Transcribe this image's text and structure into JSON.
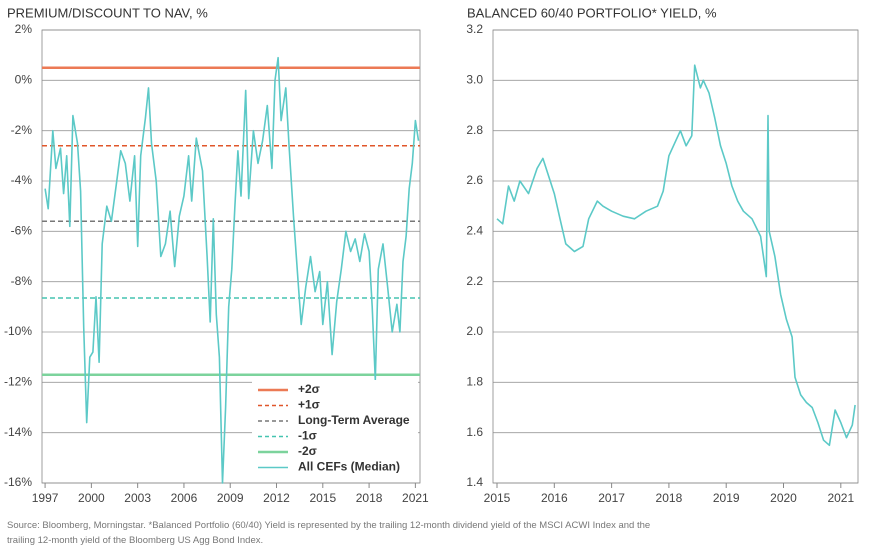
{
  "chart_data": [
    {
      "type": "line",
      "title": "PREMIUM/DISCOUNT TO NAV, %",
      "xlim": [
        1996.8,
        2021.3
      ],
      "xticks": [
        1997,
        2000,
        2003,
        2006,
        2009,
        2012,
        2015,
        2018,
        2021
      ],
      "ylim": [
        -16,
        2
      ],
      "yticks": [
        {
          "value": 2,
          "label": "2%"
        },
        {
          "value": 0,
          "label": "0%"
        },
        {
          "value": -2,
          "label": "-2%"
        },
        {
          "value": -4,
          "label": "-4%"
        },
        {
          "value": -6,
          "label": "-6%"
        },
        {
          "value": -8,
          "label": "-8%"
        },
        {
          "value": -10,
          "label": "-10%"
        },
        {
          "value": -12,
          "label": "-12%"
        },
        {
          "value": -14,
          "label": "-14%"
        },
        {
          "value": -16,
          "label": "-16%"
        }
      ],
      "grid": true,
      "legend": "lower right",
      "hlines": [
        {
          "name": "+2σ",
          "value": 0.5,
          "color": "#ec7a55",
          "style": "solid"
        },
        {
          "name": "+1σ",
          "value": -2.6,
          "color": "#e0562a",
          "style": "dashed"
        },
        {
          "name": "Long-Term Average",
          "value": -5.6,
          "color": "#777777",
          "style": "dashed"
        },
        {
          "name": "-1σ",
          "value": -8.65,
          "color": "#45c4b0",
          "style": "dashed"
        },
        {
          "name": "-2σ",
          "value": -11.7,
          "color": "#7cd39c",
          "style": "solid"
        }
      ],
      "x": [
        1997.0,
        1997.2,
        1997.5,
        1997.7,
        1998.0,
        1998.2,
        1998.4,
        1998.6,
        1998.8,
        1999.1,
        1999.3,
        1999.5,
        1999.7,
        1999.9,
        2000.1,
        2000.3,
        2000.5,
        2000.7,
        2001.0,
        2001.3,
        2001.6,
        2001.9,
        2002.2,
        2002.5,
        2002.8,
        2003.0,
        2003.2,
        2003.5,
        2003.7,
        2003.9,
        2004.2,
        2004.5,
        2004.8,
        2005.1,
        2005.4,
        2005.7,
        2006.0,
        2006.3,
        2006.5,
        2006.8,
        2007.2,
        2007.5,
        2007.7,
        2007.9,
        2008.1,
        2008.3,
        2008.5,
        2008.7,
        2008.9,
        2009.1,
        2009.3,
        2009.5,
        2009.7,
        2010.0,
        2010.2,
        2010.5,
        2010.8,
        2011.1,
        2011.4,
        2011.7,
        2011.9,
        2012.1,
        2012.3,
        2012.6,
        2012.8,
        2013.1,
        2013.4,
        2013.6,
        2013.9,
        2014.2,
        2014.5,
        2014.8,
        2015.0,
        2015.3,
        2015.6,
        2015.9,
        2016.2,
        2016.5,
        2016.8,
        2017.1,
        2017.4,
        2017.7,
        2018.0,
        2018.2,
        2018.4,
        2018.6,
        2018.9,
        2019.2,
        2019.5,
        2019.8,
        2020.0,
        2020.2,
        2020.4,
        2020.6,
        2020.8,
        2021.0,
        2021.2
      ],
      "series": [
        {
          "name": "All CEFs (Median)",
          "color": "#5cc9c7",
          "values": [
            -4.3,
            -5.1,
            -2.0,
            -3.5,
            -2.7,
            -4.5,
            -3.0,
            -5.8,
            -1.4,
            -2.5,
            -4.4,
            -9.8,
            -13.6,
            -11.0,
            -10.8,
            -8.6,
            -11.2,
            -6.5,
            -5.0,
            -5.6,
            -4.2,
            -2.8,
            -3.3,
            -4.8,
            -3.0,
            -6.6,
            -3.0,
            -1.5,
            -0.3,
            -2.5,
            -4.0,
            -7.0,
            -6.5,
            -5.2,
            -7.4,
            -5.4,
            -4.6,
            -3.0,
            -4.8,
            -2.3,
            -3.6,
            -7.0,
            -9.6,
            -5.5,
            -9.3,
            -11.0,
            -16.0,
            -13.0,
            -9.0,
            -7.5,
            -5.0,
            -2.8,
            -4.6,
            -0.4,
            -4.7,
            -2.0,
            -3.3,
            -2.4,
            -1.0,
            -3.5,
            0.0,
            0.9,
            -1.6,
            -0.3,
            -2.5,
            -5.4,
            -8.0,
            -9.7,
            -8.2,
            -7.0,
            -8.4,
            -7.6,
            -9.7,
            -8.0,
            -10.9,
            -8.8,
            -7.5,
            -6.0,
            -6.8,
            -6.3,
            -7.2,
            -6.1,
            -6.8,
            -9.0,
            -11.9,
            -7.5,
            -6.5,
            -8.2,
            -10.0,
            -8.9,
            -10.0,
            -7.2,
            -6.2,
            -4.3,
            -3.3,
            -1.6,
            -2.4
          ]
        }
      ]
    },
    {
      "type": "line",
      "title": "BALANCED 60/40 PORTFOLIO* YIELD, %",
      "xlim": [
        2014.93,
        2021.3
      ],
      "xticks": [
        2015,
        2016,
        2017,
        2018,
        2019,
        2020,
        2021
      ],
      "ylim": [
        1.4,
        3.2
      ],
      "yticks": [
        1.4,
        1.6,
        1.8,
        {
          "value": 2,
          "label": "2.0"
        },
        2.2,
        2.4,
        2.6,
        2.8,
        {
          "value": 3,
          "label": "3.0"
        },
        3.2
      ],
      "grid": true,
      "x": [
        2015.0,
        2015.1,
        2015.2,
        2015.3,
        2015.4,
        2015.55,
        2015.7,
        2015.8,
        2015.9,
        2016.0,
        2016.1,
        2016.2,
        2016.35,
        2016.5,
        2016.6,
        2016.75,
        2016.85,
        2017.0,
        2017.2,
        2017.4,
        2017.6,
        2017.8,
        2017.9,
        2018.0,
        2018.1,
        2018.2,
        2018.3,
        2018.4,
        2018.45,
        2018.55,
        2018.6,
        2018.7,
        2018.8,
        2018.9,
        2019.0,
        2019.1,
        2019.2,
        2019.3,
        2019.45,
        2019.6,
        2019.7,
        2019.73,
        2019.75,
        2019.85,
        2019.95,
        2020.05,
        2020.15,
        2020.2,
        2020.3,
        2020.4,
        2020.5,
        2020.6,
        2020.7,
        2020.8,
        2020.9,
        2021.0,
        2021.1,
        2021.2,
        2021.25
      ],
      "series": [
        {
          "name": "Balanced 60/40 Portfolio Yield",
          "color": "#5cc9c7",
          "values": [
            2.45,
            2.43,
            2.58,
            2.52,
            2.6,
            2.55,
            2.65,
            2.69,
            2.62,
            2.55,
            2.45,
            2.35,
            2.32,
            2.34,
            2.45,
            2.52,
            2.5,
            2.48,
            2.46,
            2.45,
            2.48,
            2.5,
            2.56,
            2.7,
            2.75,
            2.8,
            2.74,
            2.78,
            3.06,
            2.97,
            3.0,
            2.95,
            2.85,
            2.74,
            2.67,
            2.58,
            2.52,
            2.48,
            2.45,
            2.38,
            2.22,
            2.86,
            2.4,
            2.3,
            2.15,
            2.05,
            1.98,
            1.82,
            1.75,
            1.72,
            1.7,
            1.64,
            1.57,
            1.55,
            1.69,
            1.64,
            1.58,
            1.63,
            1.71
          ]
        }
      ]
    }
  ],
  "source": "Source: Bloomberg, Morningstar. *Balanced Portfolio (60/40) Yield is represented by the trailing 12-month dividend yield of the MSCI ACWI Index and the trailing 12-month yield of the Bloomberg US Agg Bond Index."
}
